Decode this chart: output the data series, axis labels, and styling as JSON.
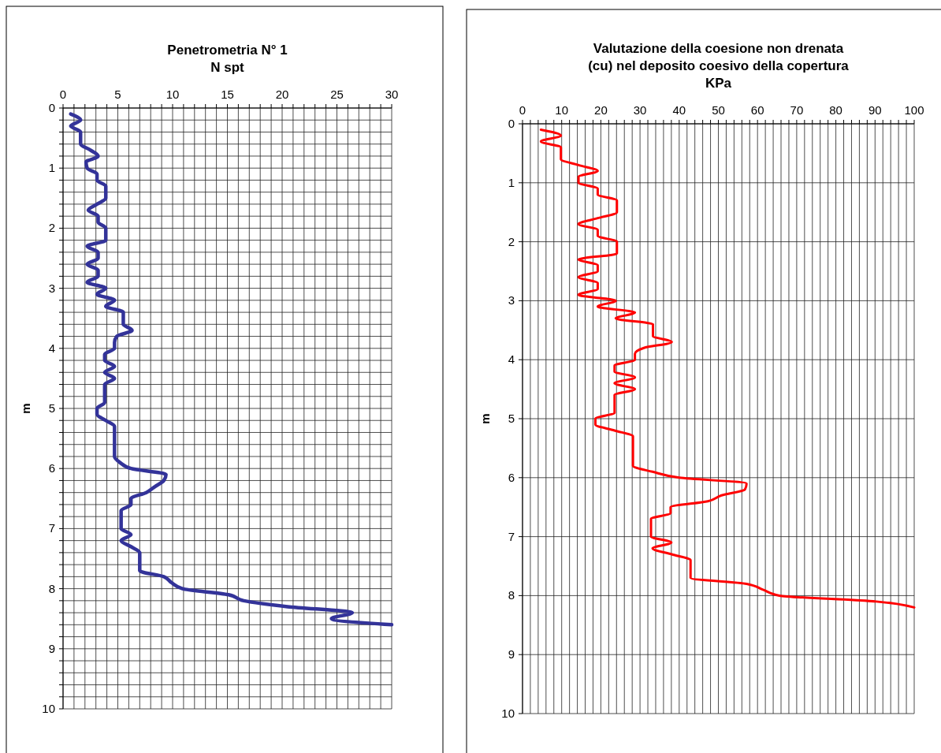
{
  "chart_data": [
    {
      "type": "line",
      "title": "Penetrometria N° 1",
      "subtitle": "N spt",
      "ylabel": "m",
      "grid": true,
      "marker": "none",
      "line_style": "solid",
      "xlim": [
        0,
        30
      ],
      "ylim": [
        10,
        0
      ],
      "xticks": [
        0,
        {
          "value": 1,
          "label": null
        },
        {
          "value": 2,
          "label": null
        },
        {
          "value": 3,
          "label": null
        },
        {
          "value": 4,
          "label": null
        },
        5,
        {
          "value": 6,
          "label": null
        },
        {
          "value": 7,
          "label": null
        },
        {
          "value": 8,
          "label": null
        },
        {
          "value": 9,
          "label": null
        },
        10,
        {
          "value": 11,
          "label": null
        },
        {
          "value": 12,
          "label": null
        },
        {
          "value": 13,
          "label": null
        },
        {
          "value": 14,
          "label": null
        },
        15,
        {
          "value": 16,
          "label": null
        },
        {
          "value": 17,
          "label": null
        },
        {
          "value": 18,
          "label": null
        },
        {
          "value": 19,
          "label": null
        },
        20,
        {
          "value": 21,
          "label": null
        },
        {
          "value": 22,
          "label": null
        },
        {
          "value": 23,
          "label": null
        },
        {
          "value": 24,
          "label": null
        },
        25,
        {
          "value": 26,
          "label": null
        },
        {
          "value": 27,
          "label": null
        },
        {
          "value": 28,
          "label": null
        },
        {
          "value": 29,
          "label": null
        },
        30
      ],
      "yticks": [
        0,
        {
          "value": 0.2,
          "label": null
        },
        {
          "value": 0.4,
          "label": null
        },
        {
          "value": 0.6,
          "label": null
        },
        {
          "value": 0.8,
          "label": null
        },
        1,
        {
          "value": 1.2,
          "label": null
        },
        {
          "value": 1.4,
          "label": null
        },
        {
          "value": 1.6,
          "label": null
        },
        {
          "value": 1.8,
          "label": null
        },
        2,
        {
          "value": 2.2,
          "label": null
        },
        {
          "value": 2.4,
          "label": null
        },
        {
          "value": 2.6,
          "label": null
        },
        {
          "value": 2.8,
          "label": null
        },
        3,
        {
          "value": 3.2,
          "label": null
        },
        {
          "value": 3.4,
          "label": null
        },
        {
          "value": 3.6,
          "label": null
        },
        {
          "value": 3.8,
          "label": null
        },
        4,
        {
          "value": 4.2,
          "label": null
        },
        {
          "value": 4.4,
          "label": null
        },
        {
          "value": 4.6,
          "label": null
        },
        {
          "value": 4.8,
          "label": null
        },
        5,
        {
          "value": 5.2,
          "label": null
        },
        {
          "value": 5.4,
          "label": null
        },
        {
          "value": 5.6,
          "label": null
        },
        {
          "value": 5.8,
          "label": null
        },
        6,
        {
          "value": 6.2,
          "label": null
        },
        {
          "value": 6.4,
          "label": null
        },
        {
          "value": 6.6,
          "label": null
        },
        {
          "value": 6.8,
          "label": null
        },
        7,
        {
          "value": 7.2,
          "label": null
        },
        {
          "value": 7.4,
          "label": null
        },
        {
          "value": 7.6,
          "label": null
        },
        {
          "value": 7.8,
          "label": null
        },
        8,
        {
          "value": 8.2,
          "label": null
        },
        {
          "value": 8.4,
          "label": null
        },
        {
          "value": 8.6,
          "label": null
        },
        {
          "value": 8.8,
          "label": null
        },
        9,
        {
          "value": 9.2,
          "label": null
        },
        {
          "value": 9.4,
          "label": null
        },
        {
          "value": 9.6,
          "label": null
        },
        {
          "value": 9.8,
          "label": null
        },
        10
      ],
      "series": [
        {
          "color": "#333399",
          "x": [
            0.7,
            1.6,
            0.7,
            1.6,
            1.6,
            1.6,
            2.5,
            3.2,
            2.1,
            2.2,
            3.1,
            3.1,
            3.9,
            3.9,
            3.9,
            3.1,
            2.3,
            3.2,
            3.2,
            3.9,
            3.9,
            3.9,
            2.2,
            3.2,
            3.2,
            2.2,
            3.2,
            3.2,
            2.2,
            3.9,
            3.1,
            4.7,
            3.9,
            5.5,
            5.5,
            5.5,
            6.3,
            4.9,
            4.7,
            4.7,
            3.8,
            3.8,
            4.7,
            3.8,
            4.7,
            3.8,
            3.8,
            3.8,
            3.8,
            3.1,
            3.1,
            3.9,
            4.7,
            4.7,
            4.7,
            4.7,
            4.7,
            4.7,
            5.2,
            6.2,
            9.4,
            9.2,
            8.4,
            7.6,
            6.2,
            6.2,
            5.3,
            5.3,
            5.3,
            5.3,
            6.2,
            5.3,
            6.2,
            7.0,
            7.0,
            7.0,
            7.0,
            9.2,
            9.9,
            10.9,
            15.1,
            16.5,
            20.5,
            26.4,
            24.5,
            30
          ],
          "values": [
            0.1,
            0.2,
            0.3,
            0.4,
            0.5,
            0.6,
            0.7,
            0.8,
            0.9,
            1.0,
            1.1,
            1.2,
            1.3,
            1.4,
            1.5,
            1.6,
            1.7,
            1.8,
            1.9,
            2.0,
            2.1,
            2.2,
            2.3,
            2.4,
            2.5,
            2.6,
            2.7,
            2.8,
            2.9,
            3.0,
            3.1,
            3.2,
            3.3,
            3.4,
            3.5,
            3.6,
            3.7,
            3.8,
            3.9,
            4.0,
            4.1,
            4.2,
            4.3,
            4.4,
            4.5,
            4.6,
            4.7,
            4.8,
            4.9,
            5.0,
            5.1,
            5.2,
            5.3,
            5.4,
            5.5,
            5.6,
            5.7,
            5.8,
            5.9,
            6.0,
            6.1,
            6.2,
            6.3,
            6.4,
            6.5,
            6.6,
            6.7,
            6.8,
            6.9,
            7.0,
            7.1,
            7.2,
            7.3,
            7.4,
            7.5,
            7.6,
            7.7,
            7.8,
            7.9,
            8.0,
            8.1,
            8.2,
            8.3,
            8.4,
            8.5,
            8.6
          ]
        }
      ]
    },
    {
      "type": "line",
      "title": "Valutazione della coesione non drenata (cu) nel deposito coesivo della copertura",
      "subtitle": "KPa",
      "ylabel": "m",
      "grid": true,
      "marker": "none",
      "line_style": "solid",
      "xlim": [
        0,
        100
      ],
      "ylim": [
        10,
        0
      ],
      "xticks": [
        0,
        {
          "value": 2,
          "label": null
        },
        {
          "value": 4,
          "label": null
        },
        {
          "value": 6,
          "label": null
        },
        {
          "value": 8,
          "label": null
        },
        10,
        {
          "value": 12,
          "label": null
        },
        {
          "value": 14,
          "label": null
        },
        {
          "value": 16,
          "label": null
        },
        {
          "value": 18,
          "label": null
        },
        20,
        {
          "value": 22,
          "label": null
        },
        {
          "value": 24,
          "label": null
        },
        {
          "value": 26,
          "label": null
        },
        {
          "value": 28,
          "label": null
        },
        30,
        {
          "value": 32,
          "label": null
        },
        {
          "value": 34,
          "label": null
        },
        {
          "value": 36,
          "label": null
        },
        {
          "value": 38,
          "label": null
        },
        40,
        {
          "value": 42,
          "label": null
        },
        {
          "value": 44,
          "label": null
        },
        {
          "value": 46,
          "label": null
        },
        {
          "value": 48,
          "label": null
        },
        50,
        {
          "value": 52,
          "label": null
        },
        {
          "value": 54,
          "label": null
        },
        {
          "value": 56,
          "label": null
        },
        {
          "value": 58,
          "label": null
        },
        60,
        {
          "value": 62,
          "label": null
        },
        {
          "value": 64,
          "label": null
        },
        {
          "value": 66,
          "label": null
        },
        {
          "value": 68,
          "label": null
        },
        70,
        {
          "value": 72,
          "label": null
        },
        {
          "value": 74,
          "label": null
        },
        {
          "value": 76,
          "label": null
        },
        {
          "value": 78,
          "label": null
        },
        80,
        {
          "value": 82,
          "label": null
        },
        {
          "value": 84,
          "label": null
        },
        {
          "value": 86,
          "label": null
        },
        {
          "value": 88,
          "label": null
        },
        90,
        {
          "value": 92,
          "label": null
        },
        {
          "value": 94,
          "label": null
        },
        {
          "value": 96,
          "label": null
        },
        {
          "value": 98,
          "label": null
        },
        100
      ],
      "yticks": [
        0,
        1,
        2,
        3,
        4,
        5,
        6,
        7,
        8,
        9,
        10
      ],
      "series": [
        {
          "color": "#ff0000",
          "x": [
            4.7,
            9.8,
            4.7,
            9.8,
            9.8,
            9.8,
            14.3,
            19.2,
            14.3,
            14.3,
            19.2,
            19.2,
            24.1,
            24.1,
            24.1,
            19.2,
            14.3,
            19.2,
            19.2,
            24.1,
            24.1,
            24.1,
            14.3,
            19.2,
            19.2,
            14.3,
            19.2,
            19.2,
            14.3,
            23.8,
            19.2,
            28.7,
            23.8,
            33.3,
            33.3,
            33.3,
            38.1,
            31,
            28.7,
            28.7,
            23.5,
            23.5,
            28.7,
            23.5,
            28.7,
            23.5,
            23.5,
            23.5,
            23.5,
            18.6,
            18.6,
            23.5,
            28.2,
            28.2,
            28.2,
            28.2,
            28.2,
            28.2,
            33.2,
            40,
            57.2,
            56.8,
            50.8,
            47.3,
            37.8,
            37.8,
            32.8,
            32.8,
            32.8,
            32.8,
            38,
            33.2,
            38.1,
            42.9,
            42.9,
            42.9,
            42.9,
            57.2,
            61.4,
            65.6,
            90.3,
            100
          ],
          "values": [
            0.1,
            0.2,
            0.3,
            0.4,
            0.5,
            0.6,
            0.7,
            0.8,
            0.9,
            1.0,
            1.1,
            1.2,
            1.3,
            1.4,
            1.5,
            1.6,
            1.7,
            1.8,
            1.9,
            2.0,
            2.1,
            2.2,
            2.3,
            2.4,
            2.5,
            2.6,
            2.7,
            2.8,
            2.9,
            3.0,
            3.1,
            3.2,
            3.3,
            3.4,
            3.5,
            3.6,
            3.7,
            3.8,
            3.9,
            4.0,
            4.1,
            4.2,
            4.3,
            4.4,
            4.5,
            4.6,
            4.7,
            4.8,
            4.9,
            5.0,
            5.1,
            5.2,
            5.3,
            5.4,
            5.5,
            5.6,
            5.7,
            5.8,
            5.9,
            6.0,
            6.1,
            6.2,
            6.3,
            6.4,
            6.5,
            6.6,
            6.7,
            6.8,
            6.9,
            7.0,
            7.1,
            7.2,
            7.3,
            7.4,
            7.5,
            7.6,
            7.7,
            7.8,
            7.9,
            8.0,
            8.1,
            8.2
          ]
        }
      ]
    }
  ]
}
